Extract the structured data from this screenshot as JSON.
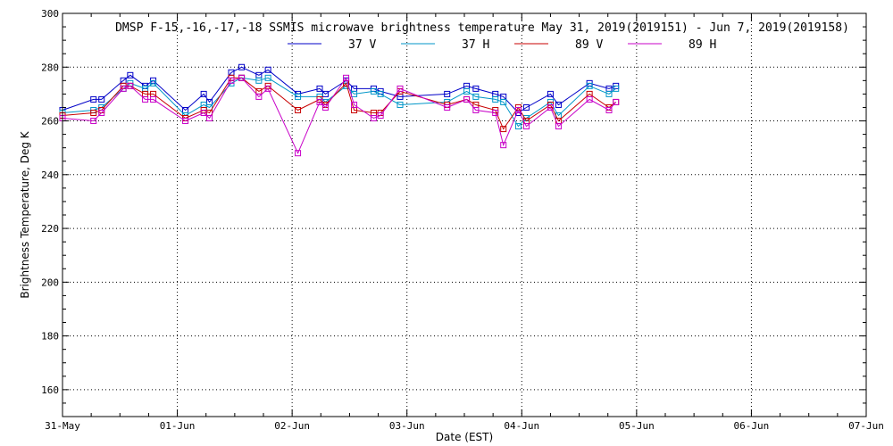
{
  "chart_data": {
    "type": "line",
    "title": "DMSP F-15,-16,-17,-18 SSMIS microwave brightness temperature May 31, 2019(2019151) - Jun  7, 2019(2019158)",
    "xlabel": "Date (EST)",
    "ylabel": "Brightness Temperature, Deg K",
    "xlim": [
      0,
      7
    ],
    "ylim": [
      150,
      300
    ],
    "x_tick_labels": [
      "31-May",
      "01-Jun",
      "02-Jun",
      "03-Jun",
      "04-Jun",
      "05-Jun",
      "06-Jun",
      "07-Jun"
    ],
    "y_ticks": [
      160,
      180,
      200,
      220,
      240,
      260,
      280,
      300
    ],
    "grid": true,
    "legend_position": "top",
    "series": [
      {
        "name": "37 V",
        "color": "#0000c8",
        "x": [
          0.0,
          0.27,
          0.34,
          0.53,
          0.59,
          0.72,
          0.79,
          1.07,
          1.23,
          1.28,
          1.47,
          1.56,
          1.71,
          1.79,
          2.05,
          2.24,
          2.29,
          2.47,
          2.54,
          2.71,
          2.77,
          2.94,
          3.35,
          3.52,
          3.6,
          3.77,
          3.84,
          3.97,
          4.04,
          4.25,
          4.32,
          4.59,
          4.76,
          4.82
        ],
        "values": [
          264,
          268,
          268,
          275,
          277,
          273,
          275,
          264,
          270,
          267,
          278,
          280,
          277,
          279,
          270,
          272,
          270,
          275,
          272,
          272,
          271,
          269,
          270,
          273,
          272,
          270,
          269,
          263,
          265,
          270,
          266,
          274,
          272,
          273
        ]
      },
      {
        "name": "37 H",
        "color": "#0096c8",
        "x": [
          0.0,
          0.27,
          0.34,
          0.53,
          0.59,
          0.72,
          0.79,
          1.07,
          1.23,
          1.28,
          1.47,
          1.56,
          1.71,
          1.79,
          2.05,
          2.24,
          2.29,
          2.47,
          2.54,
          2.71,
          2.77,
          2.94,
          3.35,
          3.52,
          3.6,
          3.77,
          3.84,
          3.97,
          4.04,
          4.25,
          4.32,
          4.59,
          4.76,
          4.82
        ],
        "values": [
          263,
          264,
          265,
          272,
          274,
          272,
          274,
          262,
          266,
          265,
          274,
          276,
          275,
          276,
          269,
          269,
          267,
          273,
          270,
          271,
          270,
          266,
          267,
          271,
          269,
          268,
          267,
          258,
          261,
          267,
          262,
          273,
          270,
          272
        ]
      },
      {
        "name": "89 V",
        "color": "#c80000",
        "x": [
          0.0,
          0.27,
          0.34,
          0.53,
          0.59,
          0.72,
          0.79,
          1.07,
          1.23,
          1.28,
          1.47,
          1.56,
          1.71,
          1.79,
          2.05,
          2.24,
          2.29,
          2.47,
          2.54,
          2.71,
          2.77,
          2.94,
          3.35,
          3.52,
          3.6,
          3.77,
          3.84,
          3.97,
          4.04,
          4.25,
          4.32,
          4.59,
          4.76,
          4.82
        ],
        "values": [
          262,
          263,
          264,
          273,
          273,
          270,
          270,
          261,
          264,
          263,
          276,
          276,
          271,
          273,
          264,
          268,
          266,
          274,
          264,
          263,
          263,
          271,
          266,
          268,
          266,
          264,
          257,
          265,
          260,
          266,
          260,
          270,
          265,
          267
        ]
      },
      {
        "name": "89 H",
        "color": "#c800c8",
        "x": [
          0.0,
          0.27,
          0.34,
          0.53,
          0.59,
          0.72,
          0.79,
          1.07,
          1.23,
          1.28,
          1.47,
          1.56,
          1.71,
          1.79,
          2.05,
          2.24,
          2.29,
          2.47,
          2.54,
          2.71,
          2.77,
          2.94,
          3.35,
          3.52,
          3.6,
          3.77,
          3.84,
          3.97,
          4.04,
          4.25,
          4.32,
          4.59,
          4.76,
          4.82
        ],
        "values": [
          261,
          260,
          263,
          272,
          273,
          268,
          268,
          260,
          263,
          261,
          275,
          276,
          269,
          272,
          248,
          267,
          265,
          276,
          266,
          261,
          262,
          272,
          265,
          268,
          264,
          263,
          251,
          264,
          258,
          265,
          258,
          268,
          264,
          267
        ]
      }
    ]
  }
}
